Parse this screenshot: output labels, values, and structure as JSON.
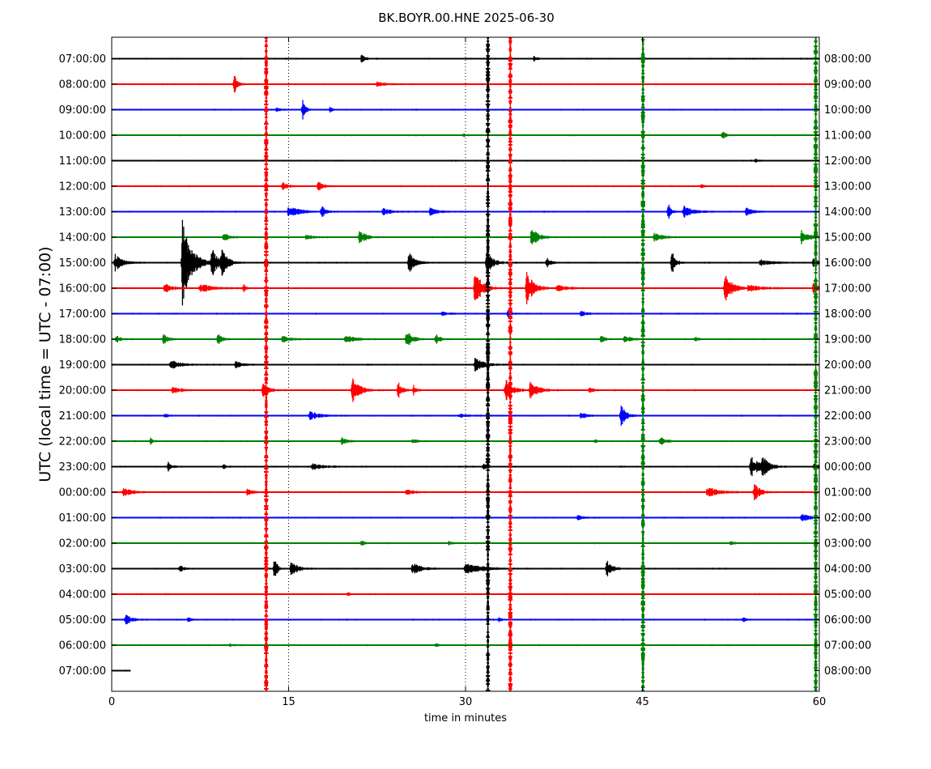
{
  "chart_data": {
    "type": "line",
    "title": "BK.BOYR.00.HNE 2025-06-30",
    "xlabel": "time in minutes",
    "ylabel": "UTC (local time = UTC - 07:00)",
    "xlim": [
      0,
      60
    ],
    "x_ticks": [
      0,
      15,
      30,
      45,
      60
    ],
    "x_tick_labels": [
      "0",
      "15",
      "30",
      "45",
      "60"
    ],
    "dotted_gridlines_x": [
      15,
      30
    ],
    "color_cycle": [
      "#000000",
      "#ff0000",
      "#0000ff",
      "#008000"
    ],
    "rows_left": [
      "07:00:00",
      "08:00:00",
      "09:00:00",
      "10:00:00",
      "11:00:00",
      "12:00:00",
      "13:00:00",
      "14:00:00",
      "15:00:00",
      "16:00:00",
      "17:00:00",
      "18:00:00",
      "19:00:00",
      "20:00:00",
      "21:00:00",
      "22:00:00",
      "23:00:00",
      "00:00:00",
      "01:00:00",
      "02:00:00",
      "03:00:00",
      "04:00:00",
      "05:00:00",
      "06:00:00",
      "07:00:00"
    ],
    "rows_right": [
      "08:00:00",
      "09:00:00",
      "10:00:00",
      "11:00:00",
      "12:00:00",
      "13:00:00",
      "14:00:00",
      "15:00:00",
      "16:00:00",
      "17:00:00",
      "18:00:00",
      "19:00:00",
      "20:00:00",
      "21:00:00",
      "22:00:00",
      "23:00:00",
      "00:00:00",
      "01:00:00",
      "02:00:00",
      "03:00:00",
      "04:00:00",
      "05:00:00",
      "06:00:00",
      "07:00:00",
      "08:00:00"
    ],
    "last_row_end_minute": 1.6,
    "events": [
      {
        "row": 0,
        "t": 21.2,
        "amp": 0.35,
        "dur": 0.6
      },
      {
        "row": 0,
        "t": 35.8,
        "amp": 0.2,
        "dur": 0.5
      },
      {
        "row": 1,
        "t": 10.4,
        "amp": 0.9,
        "dur": 0.6
      },
      {
        "row": 1,
        "t": 22.5,
        "amp": 0.18,
        "dur": 1.5
      },
      {
        "row": 2,
        "t": 16.2,
        "amp": 0.8,
        "dur": 0.5
      },
      {
        "row": 2,
        "t": 18.5,
        "amp": 0.3,
        "dur": 0.4
      },
      {
        "row": 2,
        "t": 14.0,
        "amp": 0.2,
        "dur": 0.6
      },
      {
        "row": 3,
        "t": 51.8,
        "amp": 0.4,
        "dur": 0.5
      },
      {
        "row": 3,
        "t": 29.8,
        "amp": 0.15,
        "dur": 0.4
      },
      {
        "row": 4,
        "t": 54.6,
        "amp": 0.2,
        "dur": 0.3
      },
      {
        "row": 5,
        "t": 14.5,
        "amp": 0.4,
        "dur": 0.8
      },
      {
        "row": 5,
        "t": 17.5,
        "amp": 0.4,
        "dur": 0.8
      },
      {
        "row": 5,
        "t": 50.0,
        "amp": 0.15,
        "dur": 0.4
      },
      {
        "row": 6,
        "t": 15.0,
        "amp": 0.5,
        "dur": 1.8
      },
      {
        "row": 6,
        "t": 17.8,
        "amp": 0.6,
        "dur": 0.6
      },
      {
        "row": 6,
        "t": 23.0,
        "amp": 0.3,
        "dur": 1.5
      },
      {
        "row": 6,
        "t": 27.0,
        "amp": 0.35,
        "dur": 1.2
      },
      {
        "row": 6,
        "t": 47.2,
        "amp": 0.7,
        "dur": 0.5
      },
      {
        "row": 6,
        "t": 48.5,
        "amp": 0.5,
        "dur": 1.5
      },
      {
        "row": 6,
        "t": 53.8,
        "amp": 0.35,
        "dur": 1.0
      },
      {
        "row": 7,
        "t": 21.0,
        "amp": 0.7,
        "dur": 1.0
      },
      {
        "row": 7,
        "t": 35.6,
        "amp": 0.8,
        "dur": 1.2
      },
      {
        "row": 7,
        "t": 9.5,
        "amp": 0.3,
        "dur": 1.2
      },
      {
        "row": 7,
        "t": 16.5,
        "amp": 0.2,
        "dur": 1.2
      },
      {
        "row": 7,
        "t": 46.0,
        "amp": 0.4,
        "dur": 1.2
      },
      {
        "row": 7,
        "t": 58.5,
        "amp": 0.6,
        "dur": 1.2
      },
      {
        "row": 8,
        "t": 0.3,
        "amp": 0.7,
        "dur": 1.2
      },
      {
        "row": 8,
        "t": 6.0,
        "amp": 4.0,
        "dur": 1.5
      },
      {
        "row": 8,
        "t": 8.5,
        "amp": 1.2,
        "dur": 1.0
      },
      {
        "row": 8,
        "t": 9.3,
        "amp": 1.2,
        "dur": 1.0
      },
      {
        "row": 8,
        "t": 25.2,
        "amp": 1.0,
        "dur": 1.0
      },
      {
        "row": 8,
        "t": 31.8,
        "amp": 1.0,
        "dur": 1.2
      },
      {
        "row": 8,
        "t": 36.9,
        "amp": 0.5,
        "dur": 0.6
      },
      {
        "row": 8,
        "t": 47.5,
        "amp": 1.2,
        "dur": 0.6
      },
      {
        "row": 8,
        "t": 55.0,
        "amp": 0.25,
        "dur": 2.0
      },
      {
        "row": 8,
        "t": 59.5,
        "amp": 0.35,
        "dur": 1.0
      },
      {
        "row": 9,
        "t": 4.5,
        "amp": 0.4,
        "dur": 1.2
      },
      {
        "row": 9,
        "t": 7.5,
        "amp": 0.4,
        "dur": 2.0
      },
      {
        "row": 9,
        "t": 11.2,
        "amp": 0.3,
        "dur": 0.4
      },
      {
        "row": 9,
        "t": 30.8,
        "amp": 1.6,
        "dur": 1.2
      },
      {
        "row": 9,
        "t": 35.2,
        "amp": 1.5,
        "dur": 1.2
      },
      {
        "row": 9,
        "t": 37.8,
        "amp": 0.3,
        "dur": 1.5
      },
      {
        "row": 9,
        "t": 52.0,
        "amp": 1.4,
        "dur": 1.2
      },
      {
        "row": 9,
        "t": 54.0,
        "amp": 0.25,
        "dur": 2.5
      },
      {
        "row": 9,
        "t": 59.5,
        "amp": 0.4,
        "dur": 1.0
      },
      {
        "row": 10,
        "t": 28.0,
        "amp": 0.2,
        "dur": 1.0
      },
      {
        "row": 10,
        "t": 33.6,
        "amp": 0.25,
        "dur": 0.5
      },
      {
        "row": 10,
        "t": 39.8,
        "amp": 0.25,
        "dur": 0.8
      },
      {
        "row": 11,
        "t": 0.4,
        "amp": 0.3,
        "dur": 0.8
      },
      {
        "row": 11,
        "t": 4.4,
        "amp": 0.4,
        "dur": 0.8
      },
      {
        "row": 11,
        "t": 9.0,
        "amp": 0.6,
        "dur": 0.6
      },
      {
        "row": 11,
        "t": 14.5,
        "amp": 0.3,
        "dur": 1.2
      },
      {
        "row": 11,
        "t": 19.8,
        "amp": 0.4,
        "dur": 1.5
      },
      {
        "row": 11,
        "t": 25.0,
        "amp": 0.8,
        "dur": 1.0
      },
      {
        "row": 11,
        "t": 27.5,
        "amp": 0.4,
        "dur": 0.8
      },
      {
        "row": 11,
        "t": 41.5,
        "amp": 0.4,
        "dur": 0.6
      },
      {
        "row": 11,
        "t": 43.5,
        "amp": 0.35,
        "dur": 1.0
      },
      {
        "row": 11,
        "t": 49.5,
        "amp": 0.2,
        "dur": 0.5
      },
      {
        "row": 12,
        "t": 5.0,
        "amp": 0.4,
        "dur": 1.5
      },
      {
        "row": 12,
        "t": 10.5,
        "amp": 0.35,
        "dur": 1.0
      },
      {
        "row": 12,
        "t": 30.8,
        "amp": 0.6,
        "dur": 1.5
      },
      {
        "row": 13,
        "t": 5.2,
        "amp": 0.3,
        "dur": 1.2
      },
      {
        "row": 13,
        "t": 12.8,
        "amp": 0.6,
        "dur": 1.0
      },
      {
        "row": 13,
        "t": 20.4,
        "amp": 1.2,
        "dur": 1.2
      },
      {
        "row": 13,
        "t": 24.3,
        "amp": 0.8,
        "dur": 0.6
      },
      {
        "row": 13,
        "t": 25.6,
        "amp": 0.4,
        "dur": 0.5
      },
      {
        "row": 13,
        "t": 33.4,
        "amp": 1.0,
        "dur": 1.2
      },
      {
        "row": 13,
        "t": 35.5,
        "amp": 0.8,
        "dur": 1.2
      },
      {
        "row": 13,
        "t": 40.5,
        "amp": 0.2,
        "dur": 1.0
      },
      {
        "row": 14,
        "t": 4.5,
        "amp": 0.2,
        "dur": 0.5
      },
      {
        "row": 14,
        "t": 16.8,
        "amp": 0.4,
        "dur": 1.5
      },
      {
        "row": 14,
        "t": 29.5,
        "amp": 0.15,
        "dur": 1.0
      },
      {
        "row": 14,
        "t": 39.8,
        "amp": 0.3,
        "dur": 1.0
      },
      {
        "row": 14,
        "t": 43.2,
        "amp": 1.0,
        "dur": 0.8
      },
      {
        "row": 15,
        "t": 3.3,
        "amp": 0.3,
        "dur": 0.4
      },
      {
        "row": 15,
        "t": 19.5,
        "amp": 0.25,
        "dur": 1.0
      },
      {
        "row": 15,
        "t": 25.5,
        "amp": 0.2,
        "dur": 0.8
      },
      {
        "row": 15,
        "t": 41.0,
        "amp": 0.2,
        "dur": 0.6
      },
      {
        "row": 15,
        "t": 46.5,
        "amp": 0.4,
        "dur": 1.0
      },
      {
        "row": 16,
        "t": 4.8,
        "amp": 0.4,
        "dur": 0.6
      },
      {
        "row": 16,
        "t": 9.5,
        "amp": 0.2,
        "dur": 0.4
      },
      {
        "row": 16,
        "t": 17.0,
        "amp": 0.25,
        "dur": 2.0
      },
      {
        "row": 16,
        "t": 31.5,
        "amp": 0.3,
        "dur": 0.6
      },
      {
        "row": 16,
        "t": 54.2,
        "amp": 0.9,
        "dur": 1.5
      },
      {
        "row": 16,
        "t": 55.2,
        "amp": 0.8,
        "dur": 1.0
      },
      {
        "row": 16,
        "t": 59.6,
        "amp": 0.4,
        "dur": 0.6
      },
      {
        "row": 17,
        "t": 1.0,
        "amp": 0.35,
        "dur": 1.5
      },
      {
        "row": 17,
        "t": 11.5,
        "amp": 0.3,
        "dur": 1.0
      },
      {
        "row": 17,
        "t": 25.0,
        "amp": 0.3,
        "dur": 1.0
      },
      {
        "row": 17,
        "t": 50.5,
        "amp": 0.45,
        "dur": 2.0
      },
      {
        "row": 17,
        "t": 54.5,
        "amp": 0.8,
        "dur": 1.0
      },
      {
        "row": 18,
        "t": 39.5,
        "amp": 0.2,
        "dur": 1.0
      },
      {
        "row": 18,
        "t": 58.5,
        "amp": 0.3,
        "dur": 1.5
      },
      {
        "row": 19,
        "t": 21.2,
        "amp": 0.3,
        "dur": 0.5
      },
      {
        "row": 19,
        "t": 28.6,
        "amp": 0.2,
        "dur": 0.5
      },
      {
        "row": 19,
        "t": 52.5,
        "amp": 0.15,
        "dur": 0.5
      },
      {
        "row": 20,
        "t": 5.8,
        "amp": 0.3,
        "dur": 0.6
      },
      {
        "row": 20,
        "t": 13.8,
        "amp": 1.0,
        "dur": 0.5
      },
      {
        "row": 20,
        "t": 15.2,
        "amp": 0.8,
        "dur": 1.0
      },
      {
        "row": 20,
        "t": 25.5,
        "amp": 0.5,
        "dur": 1.5
      },
      {
        "row": 20,
        "t": 30.0,
        "amp": 0.5,
        "dur": 2.5
      },
      {
        "row": 20,
        "t": 42.0,
        "amp": 0.8,
        "dur": 0.8
      },
      {
        "row": 21,
        "t": 20.0,
        "amp": 0.15,
        "dur": 0.4
      },
      {
        "row": 22,
        "t": 1.2,
        "amp": 0.5,
        "dur": 1.0
      },
      {
        "row": 22,
        "t": 6.5,
        "amp": 0.2,
        "dur": 0.4
      },
      {
        "row": 22,
        "t": 32.8,
        "amp": 0.2,
        "dur": 0.4
      },
      {
        "row": 22,
        "t": 53.5,
        "amp": 0.2,
        "dur": 0.6
      },
      {
        "row": 23,
        "t": 10.0,
        "amp": 0.15,
        "dur": 0.8
      },
      {
        "row": 23,
        "t": 27.5,
        "amp": 0.15,
        "dur": 0.4
      }
    ],
    "spikes": [
      {
        "t": 13.1,
        "color": "#ff0000"
      },
      {
        "t": 33.8,
        "color": "#ff0000"
      },
      {
        "t": 31.9,
        "color": "#000000"
      },
      {
        "t": 45.05,
        "color": "#008000"
      },
      {
        "t": 59.7,
        "color": "#008000"
      }
    ]
  }
}
